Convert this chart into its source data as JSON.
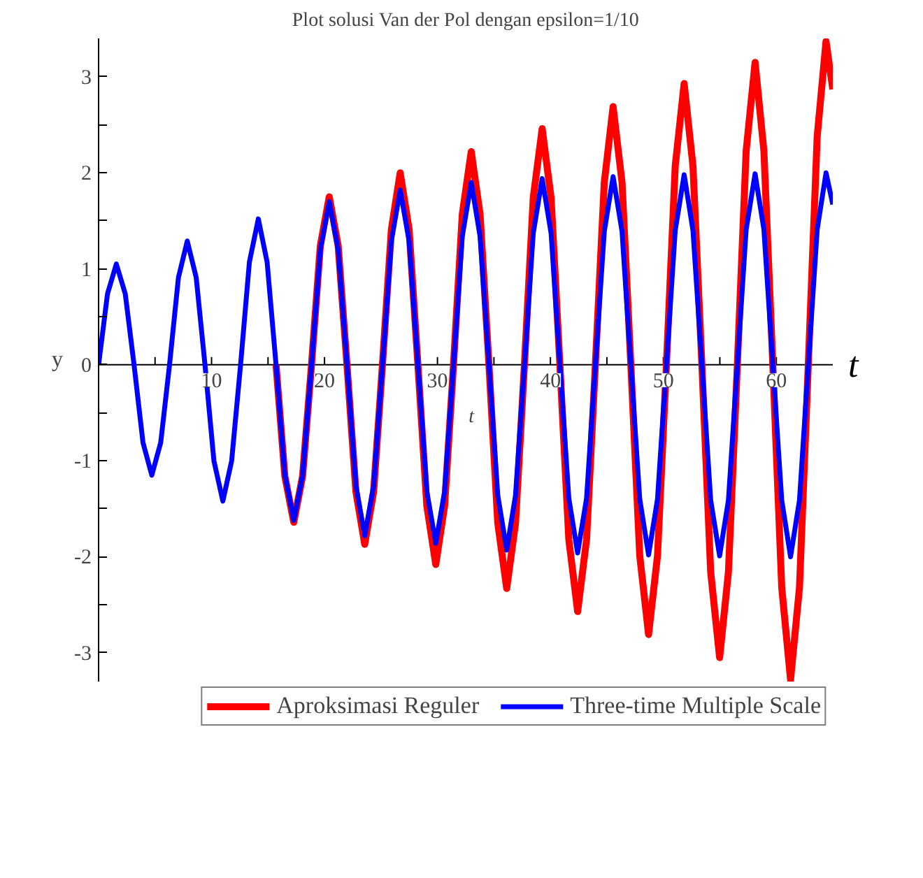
{
  "chart_data": {
    "type": "line",
    "title": "Plot solusi Van der Pol dengan epsilon=1/10",
    "xlabel": "t",
    "ylabel": "y",
    "annotations": [
      "t"
    ],
    "x": [
      0,
      0.79,
      1.57,
      2.36,
      3.14,
      3.93,
      4.71,
      5.5,
      6.28,
      7.07,
      7.85,
      8.64,
      9.42,
      10.21,
      11,
      11.78,
      12.57,
      13.35,
      14.14,
      14.92,
      15.71,
      16.49,
      17.28,
      18.06,
      18.85,
      19.63,
      20.42,
      21.21,
      21.99,
      22.78,
      23.56,
      24.35,
      25.13,
      25.92,
      26.7,
      27.49,
      28.27,
      29.06,
      29.85,
      30.63,
      31.42,
      32.2,
      32.99,
      33.77,
      34.56,
      35.34,
      36.13,
      36.91,
      37.7,
      38.48,
      39.27,
      40.06,
      40.84,
      41.63,
      42.41,
      43.2,
      43.98,
      44.77,
      45.55,
      46.34,
      47.12,
      47.91,
      48.69,
      49.48,
      50.27,
      51.05,
      51.84,
      52.62,
      53.41,
      54.19,
      54.98,
      55.76,
      56.55,
      57.33,
      58.12,
      58.9,
      59.69,
      60.48,
      61.26,
      62.05,
      62.83,
      63.62,
      64.4,
      65
    ],
    "series": [
      {
        "name": "Aproksimasi Reguler",
        "color": "#ff0000",
        "values": [
          null,
          null,
          null,
          null,
          null,
          null,
          null,
          null,
          null,
          null,
          null,
          null,
          null,
          null,
          null,
          null,
          null,
          null,
          null,
          null,
          0,
          -1.16,
          -1.64,
          -1.16,
          0,
          1.24,
          1.75,
          1.24,
          0,
          -1.32,
          -1.87,
          -1.32,
          0,
          1.41,
          2.0,
          1.41,
          0,
          -1.47,
          -2.08,
          -1.47,
          0,
          1.57,
          2.22,
          1.57,
          0,
          -1.65,
          -2.33,
          -1.65,
          0,
          1.74,
          2.46,
          1.74,
          0,
          -1.82,
          -2.57,
          -1.82,
          0,
          1.9,
          2.69,
          1.9,
          0,
          -1.99,
          -2.81,
          -1.99,
          0,
          2.07,
          2.93,
          2.07,
          0,
          -2.16,
          -3.05,
          -2.16,
          0,
          2.23,
          3.15,
          2.23,
          0,
          -2.32,
          -3.28,
          -2.32,
          0,
          2.38,
          3.37,
          2.87
        ]
      },
      {
        "name": "Three-time Multiple Scale",
        "color": "#0000ff",
        "values": [
          0,
          0.74,
          1.05,
          0.74,
          0,
          -0.81,
          -1.15,
          -0.81,
          0,
          0.91,
          1.29,
          0.91,
          0,
          -1.0,
          -1.42,
          -1.0,
          0,
          1.07,
          1.52,
          1.07,
          0,
          -1.15,
          -1.62,
          -1.15,
          0,
          1.2,
          1.7,
          1.2,
          0,
          -1.26,
          -1.78,
          -1.26,
          0,
          1.29,
          1.82,
          1.29,
          0,
          -1.32,
          -1.86,
          -1.32,
          0,
          1.34,
          1.9,
          1.34,
          0,
          -1.36,
          -1.93,
          -1.36,
          0,
          1.37,
          1.94,
          1.37,
          0,
          -1.39,
          -1.96,
          -1.39,
          0,
          1.39,
          1.96,
          1.39,
          0,
          -1.4,
          -1.98,
          -1.4,
          0,
          1.4,
          1.98,
          1.4,
          0,
          -1.41,
          -1.99,
          -1.41,
          0,
          1.41,
          1.99,
          1.41,
          0,
          -1.41,
          -2.0,
          -1.41,
          0,
          1.41,
          2.0,
          1.67
        ]
      }
    ],
    "xlim": [
      0,
      65
    ],
    "ylim": [
      -3.3,
      3.4
    ],
    "xticks": [
      {
        "value": 5,
        "label": null
      },
      10,
      {
        "value": 15,
        "label": null
      },
      20,
      {
        "value": 25,
        "label": null
      },
      30,
      {
        "value": 35,
        "label": null
      },
      40,
      {
        "value": 45,
        "label": null
      },
      50,
      {
        "value": 55,
        "label": null
      },
      60
    ],
    "yticks": [
      {
        "value": -3,
        "label": "-3"
      },
      {
        "value": -2.5,
        "label": null
      },
      {
        "value": -2,
        "label": "-2"
      },
      {
        "value": -1.5,
        "label": null
      },
      {
        "value": -1,
        "label": "-1"
      },
      {
        "value": -0.5,
        "label": null
      },
      0,
      {
        "value": 0.5,
        "label": null
      },
      1,
      {
        "value": 1.5,
        "label": null
      },
      2,
      {
        "value": 2.5,
        "label": null
      },
      3
    ],
    "grid": false,
    "legend": "bottom",
    "marker": "none",
    "line_style": "solid"
  }
}
